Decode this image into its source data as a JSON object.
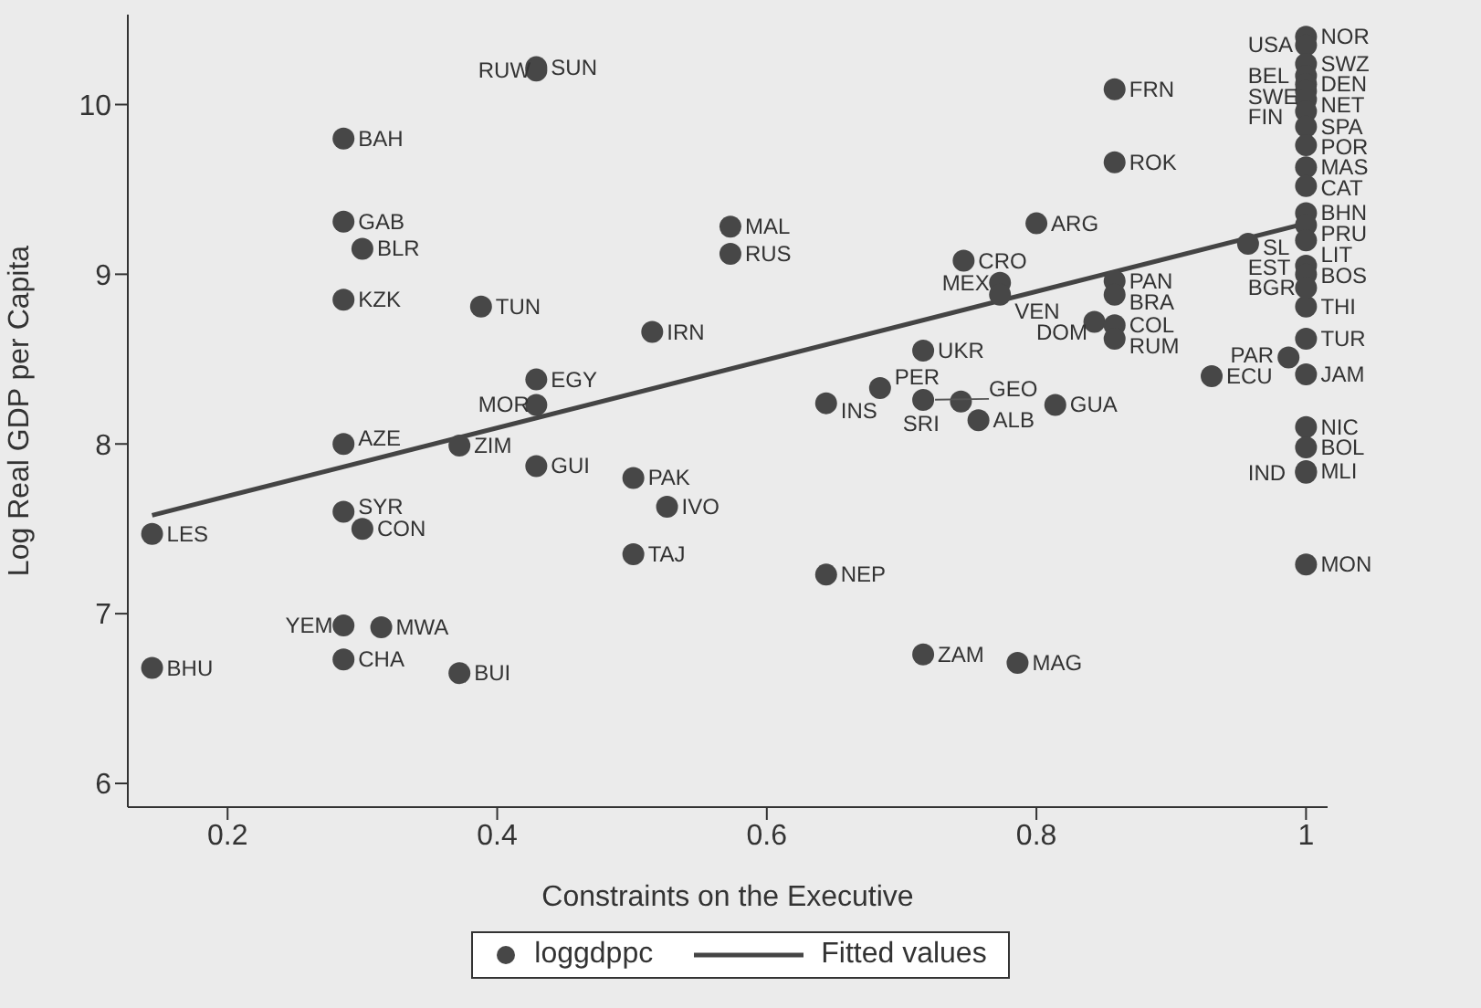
{
  "chart_data": {
    "type": "scatter",
    "xlabel": "Constraints on the Executive",
    "ylabel": "Log Real GDP per Capita",
    "xlim": [
      0.126,
      1.016
    ],
    "xticks": [
      0.2,
      0.4,
      0.6,
      0.8,
      1
    ],
    "ylim": [
      5.86,
      10.53
    ],
    "yticks": [
      6,
      7,
      8,
      9,
      10
    ],
    "grid": false,
    "legend": "bottom",
    "marker": "circle",
    "series": [
      {
        "name": "loggdppc",
        "color": "#474747",
        "x": [
          0.144,
          0.144,
          0.286,
          0.286,
          0.286,
          0.286,
          0.286,
          0.286,
          0.286,
          0.3,
          0.3,
          0.314,
          0.372,
          0.372,
          0.388,
          0.429,
          0.429,
          0.429,
          0.429,
          0.429,
          0.501,
          0.501,
          0.515,
          0.526,
          0.573,
          0.573,
          0.644,
          0.644,
          0.684,
          0.716,
          0.716,
          0.716,
          0.744,
          0.746,
          0.757,
          0.773,
          0.773,
          0.786,
          0.8,
          0.814,
          0.843,
          0.858,
          0.858,
          0.858,
          0.858,
          0.858,
          0.858,
          0.93,
          0.957,
          0.987,
          1,
          1,
          1,
          1,
          1,
          1,
          1,
          1,
          1,
          1,
          1,
          1,
          1,
          1,
          1,
          1,
          1,
          1,
          1,
          1,
          1,
          1,
          1,
          1,
          1,
          1
        ],
        "values": [
          7.47,
          6.68,
          9.8,
          9.31,
          8.85,
          8.0,
          7.6,
          6.93,
          6.73,
          9.15,
          7.5,
          6.92,
          7.99,
          6.65,
          8.81,
          10.22,
          10.2,
          8.38,
          8.23,
          7.87,
          7.8,
          7.35,
          8.66,
          7.63,
          9.28,
          9.12,
          8.24,
          7.23,
          8.33,
          8.55,
          8.26,
          6.76,
          8.25,
          9.08,
          8.14,
          8.95,
          8.88,
          6.71,
          9.3,
          8.23,
          8.72,
          10.09,
          9.66,
          8.96,
          8.88,
          8.7,
          8.62,
          8.4,
          9.18,
          8.51,
          10.4,
          10.35,
          10.24,
          10.17,
          10.12,
          10.08,
          10.03,
          9.96,
          9.87,
          9.76,
          9.63,
          9.52,
          9.36,
          9.29,
          9.2,
          9.05,
          9.0,
          8.81,
          8.62,
          8.41,
          8.1,
          7.98,
          7.84,
          7.83,
          7.29,
          8.92
        ]
      },
      {
        "name": "Fitted values",
        "type": "line",
        "marker": "none",
        "color": "#444444",
        "x": [
          0.144,
          1
        ],
        "values": [
          7.58,
          9.3
        ]
      }
    ],
    "annotations": [
      {
        "text": "LES",
        "x": 0.144,
        "y": 7.47
      },
      {
        "text": "BHU",
        "x": 0.144,
        "y": 6.68
      },
      {
        "text": "BAH",
        "x": 0.286,
        "y": 9.8
      },
      {
        "text": "GAB",
        "x": 0.286,
        "y": 9.31
      },
      {
        "text": "KZK",
        "x": 0.286,
        "y": 8.85
      },
      {
        "text": "AZE",
        "x": 0.286,
        "y": 8.0
      },
      {
        "text": "SYR",
        "x": 0.286,
        "y": 7.6
      },
      {
        "text": "YEM",
        "x": 0.286,
        "y": 6.93
      },
      {
        "text": "CHA",
        "x": 0.286,
        "y": 6.73
      },
      {
        "text": "BLR",
        "x": 0.3,
        "y": 9.15
      },
      {
        "text": "CON",
        "x": 0.3,
        "y": 7.5
      },
      {
        "text": "MWA",
        "x": 0.314,
        "y": 6.92
      },
      {
        "text": "ZIM",
        "x": 0.372,
        "y": 7.99
      },
      {
        "text": "BUI",
        "x": 0.372,
        "y": 6.65
      },
      {
        "text": "TUN",
        "x": 0.388,
        "y": 8.81
      },
      {
        "text": "SUN",
        "x": 0.429,
        "y": 10.22
      },
      {
        "text": "RUW",
        "x": 0.429,
        "y": 10.2
      },
      {
        "text": "EGY",
        "x": 0.429,
        "y": 8.38
      },
      {
        "text": "MOR",
        "x": 0.429,
        "y": 8.23
      },
      {
        "text": "GUI",
        "x": 0.429,
        "y": 7.87
      },
      {
        "text": "PAK",
        "x": 0.501,
        "y": 7.8
      },
      {
        "text": "TAJ",
        "x": 0.501,
        "y": 7.35
      },
      {
        "text": "IRN",
        "x": 0.515,
        "y": 8.66
      },
      {
        "text": "IVO",
        "x": 0.526,
        "y": 7.63
      },
      {
        "text": "MAL",
        "x": 0.573,
        "y": 9.28
      },
      {
        "text": "RUS",
        "x": 0.573,
        "y": 9.12
      },
      {
        "text": "INS",
        "x": 0.644,
        "y": 8.24
      },
      {
        "text": "NEP",
        "x": 0.644,
        "y": 7.23
      },
      {
        "text": "PER",
        "x": 0.684,
        "y": 8.33
      },
      {
        "text": "UKR",
        "x": 0.716,
        "y": 8.55
      },
      {
        "text": "GEO",
        "x": 0.716,
        "y": 8.26
      },
      {
        "text": "ZAM",
        "x": 0.716,
        "y": 6.76
      },
      {
        "text": "SRI",
        "x": 0.744,
        "y": 8.25
      },
      {
        "text": "CRO",
        "x": 0.746,
        "y": 9.08
      },
      {
        "text": "ALB",
        "x": 0.757,
        "y": 8.14
      },
      {
        "text": "MEX",
        "x": 0.773,
        "y": 8.95
      },
      {
        "text": "VEN",
        "x": 0.773,
        "y": 8.88
      },
      {
        "text": "MAG",
        "x": 0.786,
        "y": 6.71
      },
      {
        "text": "ARG",
        "x": 0.8,
        "y": 9.3
      },
      {
        "text": "GUA",
        "x": 0.814,
        "y": 8.23
      },
      {
        "text": "DOM",
        "x": 0.843,
        "y": 8.72
      },
      {
        "text": "FRN",
        "x": 0.858,
        "y": 10.09
      },
      {
        "text": "ROK",
        "x": 0.858,
        "y": 9.66
      },
      {
        "text": "PAN",
        "x": 0.858,
        "y": 8.96
      },
      {
        "text": "BRA",
        "x": 0.858,
        "y": 8.88
      },
      {
        "text": "COL",
        "x": 0.858,
        "y": 8.7
      },
      {
        "text": "RUM",
        "x": 0.858,
        "y": 8.62
      },
      {
        "text": "ECU",
        "x": 0.93,
        "y": 8.4
      },
      {
        "text": "SL",
        "x": 0.957,
        "y": 9.18
      },
      {
        "text": "PAR",
        "x": 0.987,
        "y": 8.51
      },
      {
        "text": "NOR",
        "x": 1,
        "y": 10.4
      },
      {
        "text": "USA",
        "x": 1,
        "y": 10.35
      },
      {
        "text": "SWZ",
        "x": 1,
        "y": 10.24
      },
      {
        "text": "BEL",
        "x": 1,
        "y": 10.17
      },
      {
        "text": "DEN",
        "x": 1,
        "y": 10.12
      },
      {
        "text": "SWE",
        "x": 1,
        "y": 10.08
      },
      {
        "text": "NET",
        "x": 1,
        "y": 10.03
      },
      {
        "text": "FIN",
        "x": 1,
        "y": 9.96
      },
      {
        "text": "SPA",
        "x": 1,
        "y": 9.87
      },
      {
        "text": "POR",
        "x": 1,
        "y": 9.76
      },
      {
        "text": "MAS",
        "x": 1,
        "y": 9.63
      },
      {
        "text": "CAT",
        "x": 1,
        "y": 9.52
      },
      {
        "text": "BHN",
        "x": 1,
        "y": 9.36
      },
      {
        "text": "PRU",
        "x": 1,
        "y": 9.29
      },
      {
        "text": "LIT",
        "x": 1,
        "y": 9.2
      },
      {
        "text": "EST",
        "x": 1,
        "y": 9.05
      },
      {
        "text": "BOS",
        "x": 1,
        "y": 9.0
      },
      {
        "text": "THI",
        "x": 1,
        "y": 8.81
      },
      {
        "text": "TUR",
        "x": 1,
        "y": 8.62
      },
      {
        "text": "JAM",
        "x": 1,
        "y": 8.41
      },
      {
        "text": "NIC",
        "x": 1,
        "y": 8.1
      },
      {
        "text": "BOL",
        "x": 1,
        "y": 7.98
      },
      {
        "text": "MLI",
        "x": 1,
        "y": 7.84
      },
      {
        "text": "IND",
        "x": 1,
        "y": 7.83
      },
      {
        "text": "MON",
        "x": 1,
        "y": 7.29
      },
      {
        "text": "BGR",
        "x": 1,
        "y": 8.92
      }
    ]
  }
}
